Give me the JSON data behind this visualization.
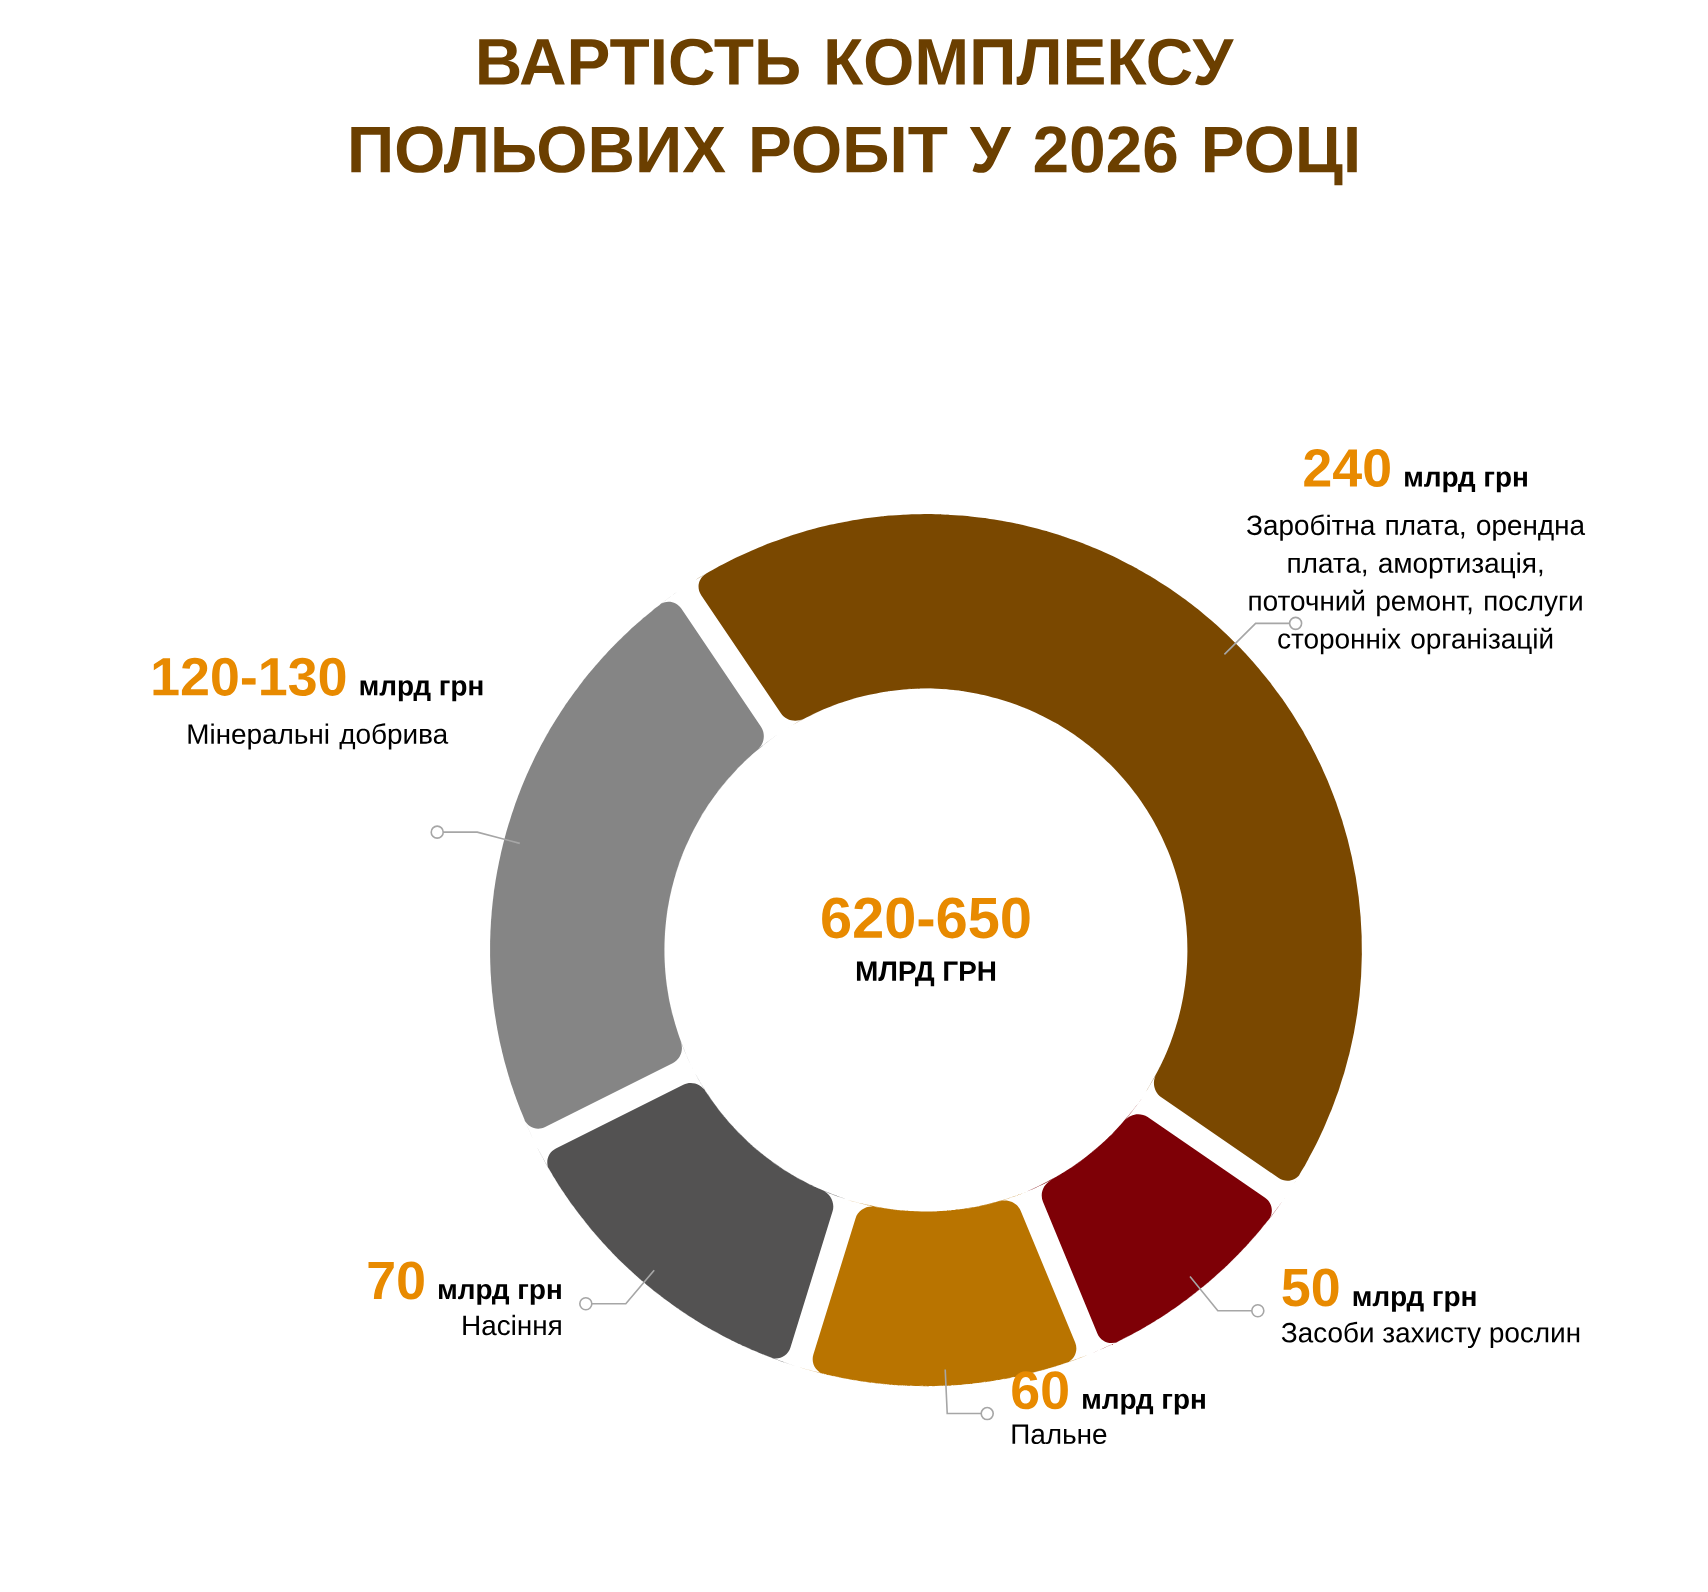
{
  "chart_data": {
    "type": "donut",
    "title": "ВАРТІСТЬ КОМПЛЕКСУ ПОЛЬОВИХ РОБІТ У 2026 РОЦІ",
    "categories": [
      "Заробітна плата, орендна плата, амортизація, поточний ремонт, послуги сторонніх організацій",
      "Засоби захисту рослин",
      "Пальне",
      "Насіння",
      "Мінеральні добрива"
    ],
    "values": [
      240,
      50,
      60,
      70,
      125
    ],
    "value_labels": [
      "240",
      "50",
      "60",
      "70",
      "120-130"
    ],
    "colors": [
      "#7a4800",
      "#7e0006",
      "#b97400",
      "#535252",
      "#858585"
    ],
    "annotations": [
      "620-650",
      "МЛРД ГРН",
      "млрд грн"
    ],
    "legend": false
  }
}
